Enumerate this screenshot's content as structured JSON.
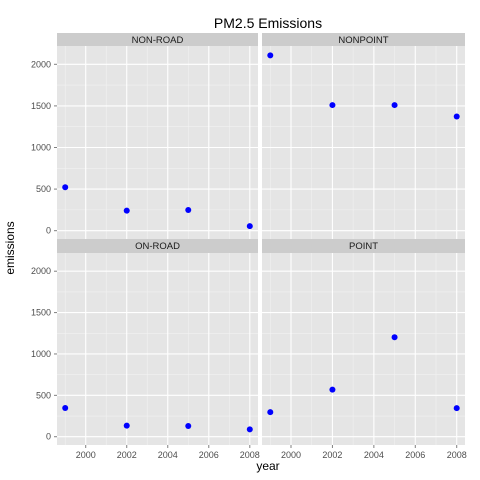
{
  "chart_data": {
    "type": "scatter",
    "title": "PM2.5 Emissions",
    "xlabel": "year",
    "ylabel": "emissions",
    "xlim": [
      1998.6,
      2008.4
    ],
    "ylim": [
      -100,
      2220
    ],
    "x_ticks": [
      2000,
      2002,
      2004,
      2006,
      2008
    ],
    "y_ticks": [
      0,
      500,
      1000,
      1500,
      2000
    ],
    "grid": true,
    "point_color": "#0000ff",
    "panel_background": "#e5e5e5",
    "strip_background": "#cccccc",
    "panels": [
      {
        "name": "NON-ROAD",
        "x": [
          1999,
          2002,
          2005,
          2008
        ],
        "y": [
          522,
          241,
          248,
          55
        ]
      },
      {
        "name": "NONPOINT",
        "x": [
          1999,
          2002,
          2005,
          2008
        ],
        "y": [
          2108,
          1510,
          1510,
          1373
        ]
      },
      {
        "name": "ON-ROAD",
        "x": [
          1999,
          2002,
          2005,
          2008
        ],
        "y": [
          347,
          134,
          130,
          89
        ]
      },
      {
        "name": "POINT",
        "x": [
          1999,
          2002,
          2005,
          2008
        ],
        "y": [
          297,
          569,
          1202,
          345
        ]
      }
    ]
  }
}
